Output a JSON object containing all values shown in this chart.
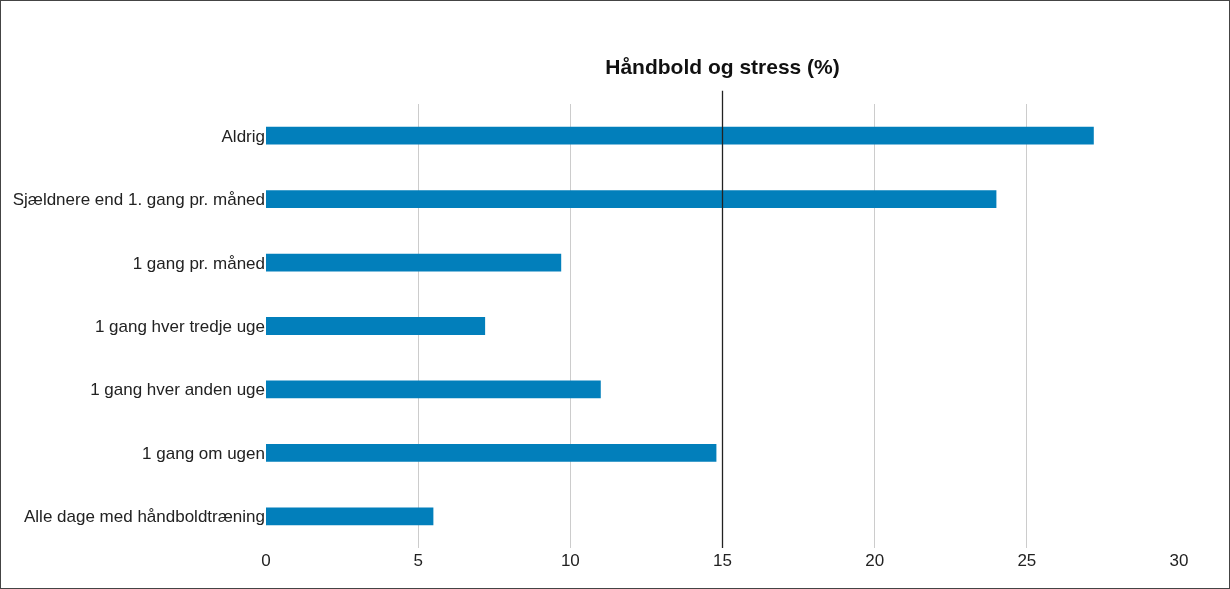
{
  "chart_data": {
    "type": "bar",
    "orientation": "horizontal",
    "title": "Håndbold og stress (%)",
    "categories": [
      "Aldrig",
      "Sjældnere end 1. gang pr. måned",
      "1 gang pr. måned",
      "1 gang hver tredje uge",
      "1 gang hver anden uge",
      "1 gang om ugen",
      "Alle dage med håndboldtræning"
    ],
    "values": [
      27.2,
      24.0,
      9.7,
      7.2,
      11.0,
      14.8,
      5.5
    ],
    "color": "#027fbb",
    "xlim": [
      0,
      30
    ],
    "xticks": [
      0,
      5,
      10,
      15,
      20,
      25,
      30
    ],
    "grid": "x",
    "ref_lines": [
      {
        "axis": "x",
        "value": 15,
        "color": "#222222"
      }
    ]
  }
}
